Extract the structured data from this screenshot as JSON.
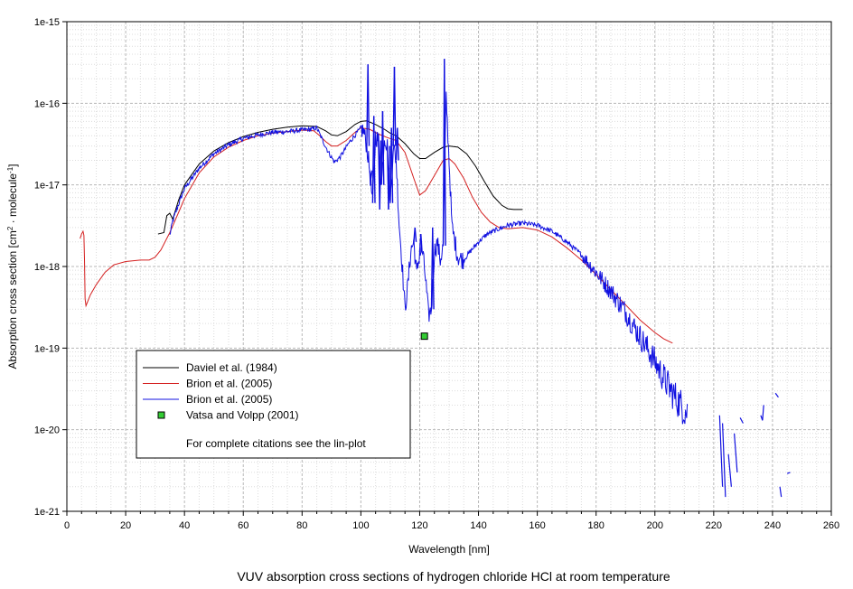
{
  "caption": "VUV absorption cross sections of hydrogen chloride HCl at room temperature",
  "chart_data": {
    "type": "line",
    "xlabel": "Wavelength [nm]",
    "ylabel_parts": [
      "Absorption cross section [cm",
      "2",
      " molecule",
      "-1",
      "]"
    ],
    "xlim": [
      0,
      260
    ],
    "ylim": [
      1e-21,
      1e-15
    ],
    "y_scale": "log",
    "grid": true,
    "x_ticks": [
      0,
      20,
      40,
      60,
      80,
      100,
      120,
      140,
      160,
      180,
      200,
      220,
      240,
      260
    ],
    "y_ticks": [
      {
        "value": 1e-21,
        "label": "1e-21"
      },
      {
        "value": 1e-20,
        "label": "1e-20"
      },
      {
        "value": 1e-19,
        "label": "1e-19"
      },
      {
        "value": 1e-18,
        "label": "1e-18"
      },
      {
        "value": 1e-17,
        "label": "1e-17"
      },
      {
        "value": 1e-16,
        "label": "1e-16"
      },
      {
        "value": 1e-15,
        "label": "1e-15"
      }
    ],
    "legend_position": "bottom-left",
    "legend_note": "For complete citations see the lin-plot",
    "series": [
      {
        "name": "Daviel et al. (1984)",
        "color": "#000000",
        "kind": "line",
        "points": [
          [
            31,
            2.5e-18
          ],
          [
            33,
            2.6e-18
          ],
          [
            34,
            4.2e-18
          ],
          [
            35,
            4.5e-18
          ],
          [
            36,
            3.8e-18
          ],
          [
            38,
            6.5e-18
          ],
          [
            40,
            1e-17
          ],
          [
            45,
            1.8e-17
          ],
          [
            50,
            2.6e-17
          ],
          [
            55,
            3.3e-17
          ],
          [
            60,
            3.9e-17
          ],
          [
            65,
            4.4e-17
          ],
          [
            70,
            4.8e-17
          ],
          [
            75,
            5.1e-17
          ],
          [
            80,
            5.3e-17
          ],
          [
            85,
            5.2e-17
          ],
          [
            88,
            4.6e-17
          ],
          [
            90,
            4.1e-17
          ],
          [
            92,
            4e-17
          ],
          [
            95,
            4.5e-17
          ],
          [
            98,
            5.5e-17
          ],
          [
            100,
            6e-17
          ],
          [
            102,
            6.1e-17
          ],
          [
            105,
            5.5e-17
          ],
          [
            108,
            4.8e-17
          ],
          [
            110,
            4.3e-17
          ],
          [
            112,
            4e-17
          ],
          [
            115,
            3.2e-17
          ],
          [
            118,
            2.4e-17
          ],
          [
            120,
            2.1e-17
          ],
          [
            122,
            2.1e-17
          ],
          [
            125,
            2.5e-17
          ],
          [
            128,
            2.9e-17
          ],
          [
            130,
            3e-17
          ],
          [
            133,
            2.9e-17
          ],
          [
            136,
            2.4e-17
          ],
          [
            139,
            1.7e-17
          ],
          [
            142,
            1.1e-17
          ],
          [
            145,
            7.3e-18
          ],
          [
            148,
            5.6e-18
          ],
          [
            150,
            5.1e-18
          ],
          [
            152,
            5e-18
          ],
          [
            155,
            5e-18
          ]
        ]
      },
      {
        "name": "Brion et al. (2005)",
        "color": "#d42020",
        "kind": "line",
        "points": [
          [
            4.5,
            2.2e-18
          ],
          [
            5.0,
            2.5e-18
          ],
          [
            5.5,
            2.7e-18
          ],
          [
            5.8,
            2.4e-18
          ],
          [
            6.0,
            1.2e-18
          ],
          [
            6.2,
            4e-19
          ],
          [
            6.5,
            3.3e-19
          ],
          [
            8,
            4.5e-19
          ],
          [
            10,
            6e-19
          ],
          [
            13,
            8.5e-19
          ],
          [
            16,
            1.05e-18
          ],
          [
            20,
            1.15e-18
          ],
          [
            25,
            1.2e-18
          ],
          [
            28,
            1.2e-18
          ],
          [
            30,
            1.3e-18
          ],
          [
            32,
            1.6e-18
          ],
          [
            35,
            2.6e-18
          ],
          [
            38,
            4.6e-18
          ],
          [
            40,
            6.8e-18
          ],
          [
            45,
            1.4e-17
          ],
          [
            50,
            2.2e-17
          ],
          [
            55,
            2.9e-17
          ],
          [
            60,
            3.5e-17
          ],
          [
            65,
            4e-17
          ],
          [
            70,
            4.3e-17
          ],
          [
            75,
            4.5e-17
          ],
          [
            80,
            4.7e-17
          ],
          [
            84,
            4.6e-17
          ],
          [
            86,
            4e-17
          ],
          [
            88,
            3.4e-17
          ],
          [
            90,
            3e-17
          ],
          [
            92,
            3e-17
          ],
          [
            95,
            3.5e-17
          ],
          [
            98,
            4.4e-17
          ],
          [
            100,
            5e-17
          ],
          [
            103,
            4.8e-17
          ],
          [
            106,
            4.2e-17
          ],
          [
            109,
            3.8e-17
          ],
          [
            112,
            3.5e-17
          ],
          [
            115,
            2.5e-17
          ],
          [
            118,
            1.2e-17
          ],
          [
            120,
            7.5e-18
          ],
          [
            122,
            8.5e-18
          ],
          [
            125,
            1.3e-17
          ],
          [
            128,
            2e-17
          ],
          [
            130,
            2.1e-17
          ],
          [
            132,
            1.8e-17
          ],
          [
            135,
            1.2e-17
          ],
          [
            138,
            7e-18
          ],
          [
            141,
            4.6e-18
          ],
          [
            144,
            3.5e-18
          ],
          [
            147,
            3e-18
          ],
          [
            150,
            2.9e-18
          ],
          [
            155,
            3e-18
          ],
          [
            160,
            2.8e-18
          ],
          [
            165,
            2.3e-18
          ],
          [
            170,
            1.7e-18
          ],
          [
            175,
            1.2e-18
          ],
          [
            180,
            8e-19
          ],
          [
            185,
            5.2e-19
          ],
          [
            190,
            3.4e-19
          ],
          [
            195,
            2.2e-19
          ],
          [
            200,
            1.55e-19
          ],
          [
            203,
            1.3e-19
          ],
          [
            206,
            1.15e-19
          ]
        ]
      },
      {
        "name": "Brion et al. (2005)",
        "color": "#1010e0",
        "kind": "noisy",
        "points": [
          [
            35,
            2.4e-18
          ],
          [
            36,
            3.6e-18
          ],
          [
            38,
            5.8e-18
          ],
          [
            40,
            9e-18
          ],
          [
            45,
            1.6e-17
          ],
          [
            50,
            2.4e-17
          ],
          [
            55,
            3.1e-17
          ],
          [
            60,
            3.7e-17
          ],
          [
            65,
            4.1e-17
          ],
          [
            70,
            4.4e-17
          ],
          [
            75,
            4.5e-17
          ],
          [
            80,
            4.7e-17
          ],
          [
            83,
            4.8e-17
          ],
          [
            85,
            5e-17
          ],
          [
            87,
            3.5e-17
          ],
          [
            89,
            2.5e-17
          ],
          [
            91,
            1.9e-17
          ],
          [
            93,
            2.2e-17
          ],
          [
            96,
            3.3e-17
          ],
          [
            99,
            4.5e-17
          ],
          [
            100,
            4.9e-17
          ],
          [
            101,
            4.5e-17
          ],
          [
            102,
            3e-17
          ],
          [
            103,
            1.5e-17
          ],
          [
            104,
            6e-18
          ],
          [
            105,
            4e-17
          ],
          [
            106,
            3.5e-17
          ],
          [
            107,
            1e-17
          ],
          [
            108,
            4e-17
          ],
          [
            109,
            3e-17
          ],
          [
            110,
            6e-18
          ],
          [
            111,
            3e-17
          ],
          [
            112,
            2e-17
          ],
          [
            113,
            3.5e-18
          ],
          [
            114,
            1.1e-18
          ],
          [
            115,
            3e-19
          ],
          [
            116,
            6e-19
          ],
          [
            117,
            1.6e-18
          ],
          [
            118,
            2e-18
          ],
          [
            119,
            8e-19
          ],
          [
            120,
            1.5e-18
          ],
          [
            121,
            1.5e-18
          ],
          [
            122,
            7e-19
          ],
          [
            123,
            2.5e-19
          ],
          [
            124,
            3e-19
          ],
          [
            125,
            1.5e-18
          ],
          [
            126,
            2e-18
          ],
          [
            127,
            1.2e-18
          ],
          [
            128,
            1.8e-18
          ],
          [
            129,
            1.2e-16
          ],
          [
            130,
            2e-17
          ],
          [
            131,
            3e-18
          ],
          [
            132,
            2e-18
          ],
          [
            133,
            1.3e-18
          ],
          [
            135,
            1.2e-18
          ],
          [
            137,
            1.5e-18
          ],
          [
            140,
            2e-18
          ],
          [
            143,
            2.5e-18
          ],
          [
            146,
            2.8e-18
          ],
          [
            150,
            3.2e-18
          ],
          [
            155,
            3.4e-18
          ],
          [
            160,
            3.2e-18
          ],
          [
            165,
            2.7e-18
          ],
          [
            170,
            2e-18
          ],
          [
            175,
            1.4e-18
          ],
          [
            180,
            8.5e-19
          ],
          [
            185,
            5e-19
          ],
          [
            190,
            2.8e-19
          ],
          [
            193,
            1.8e-19
          ],
          [
            196,
            1.2e-19
          ],
          [
            199,
            8e-20
          ],
          [
            202,
            5e-20
          ],
          [
            205,
            3.2e-20
          ],
          [
            208,
            2.2e-20
          ],
          [
            211,
            1.6e-20
          ]
        ],
        "spikes": [
          [
            102,
            3e-16
          ],
          [
            103,
            1.2e-17
          ],
          [
            104,
            7e-17
          ],
          [
            106,
            5e-18
          ],
          [
            107,
            8e-17
          ],
          [
            109,
            5e-18
          ],
          [
            110,
            5e-17
          ],
          [
            111,
            2.8e-16
          ],
          [
            112,
            5e-17
          ],
          [
            118,
            3e-18
          ],
          [
            120,
            2.5e-18
          ],
          [
            124,
            3e-18
          ],
          [
            128,
            3.5e-16
          ]
        ],
        "fragments": [
          [
            [
              222,
              1.5e-20
            ],
            [
              223,
              2e-21
            ]
          ],
          [
            [
              223,
              1.2e-20
            ],
            [
              224,
              1.5e-21
            ]
          ],
          [
            [
              225,
              5e-21
            ],
            [
              226,
              2e-21
            ]
          ],
          [
            [
              227,
              9e-21
            ],
            [
              228,
              3e-21
            ]
          ],
          [
            [
              229,
              1.4e-20
            ],
            [
              230,
              1.2e-20
            ]
          ],
          [
            [
              236,
              1.5e-20
            ],
            [
              236.6,
              1.3e-20
            ],
            [
              237,
              2e-20
            ]
          ],
          [
            [
              241,
              2.8e-20
            ],
            [
              242,
              2.5e-20
            ]
          ],
          [
            [
              242.5,
              2e-21
            ],
            [
              243,
              1.5e-21
            ]
          ],
          [
            [
              245,
              2.9e-21
            ],
            [
              246,
              3e-21
            ]
          ]
        ]
      },
      {
        "name": "Vatsa and Volpp (2001)",
        "color": "#33cc33",
        "kind": "marker",
        "points": [
          [
            121.6,
            1.4e-19
          ]
        ]
      }
    ]
  }
}
